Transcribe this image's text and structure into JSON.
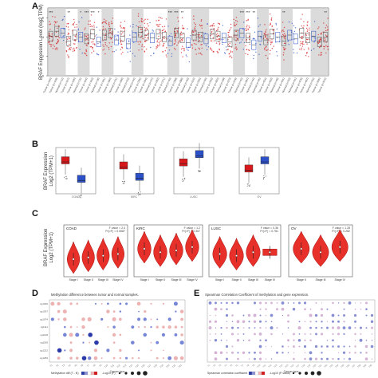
{
  "labels": {
    "a": "A",
    "b": "B",
    "c": "C",
    "d": "D",
    "e": "E"
  },
  "panel_a": {
    "ylabel": "BRAF Expression Level (log2 TPM)",
    "significance": [
      "***",
      "",
      "",
      "**",
      "",
      "*",
      "***",
      "***",
      "*",
      "",
      "",
      "",
      "",
      "",
      "",
      "",
      "",
      "",
      "",
      "",
      "***",
      "***",
      "**",
      "",
      "",
      "",
      "",
      "",
      "",
      "",
      "",
      "",
      "***",
      "***",
      "**",
      "",
      "",
      "",
      "",
      "**",
      "",
      "",
      "",
      "",
      "",
      "",
      "**"
    ]
  },
  "panel_b": {
    "ylabel": "BRAF Expression\nLog2 (TPM+1)"
  },
  "panel_c": {
    "ylabel": "BRAF Expression\nLog2 (TPM+1)",
    "subplots": [
      {
        "name": "COAD",
        "stat1": "F value = 2.4",
        "stat2": "Pr(>F) = 0.0687",
        "stages": [
          "Stage I",
          "Stage II",
          "Stage III",
          "Stage IV"
        ]
      },
      {
        "name": "KIRC",
        "stat1": "F value = 1.2",
        "stat2": "Pr(>F) = 0.307",
        "stages": [
          "Stage I",
          "Stage II",
          "Stage III",
          "Stage IV"
        ]
      },
      {
        "name": "LUSC",
        "stat1": "F value = 0.36",
        "stat2": "Pr(>F) = 0.781",
        "stages": [
          "Stage I",
          "Stage II",
          "Stage III",
          "Stage IV"
        ]
      },
      {
        "name": "OV",
        "stat1": "F value = 1.28",
        "stat2": "Pr(>F) = 0.282",
        "stages": [
          "Stage II",
          "Stage III",
          "Stage IV"
        ]
      }
    ]
  },
  "panel_d": {
    "title": "Methylation difference between tumor and normal samples.",
    "xlabel": "Cancer type",
    "ylabel": "Probe",
    "legend1": "Methylation diff (T - N)",
    "legend2": "-Log10 (P)"
  },
  "panel_e": {
    "title": "Spearman Correlation Coefficient of methylation and gene expression.",
    "xlabel": "Cancer type",
    "ylabel": "Probe",
    "legend1": "Spearman correlation coefficient",
    "legend2": "-Log10 (P-value)"
  },
  "colors": {
    "tumor": "#d7191c",
    "normal": "#2b50c8",
    "gray_band": "#cfcfcf",
    "violin": "#e8302a"
  },
  "chart_data": [
    {
      "type": "scatter",
      "panel": "A",
      "ylabel": "BRAF Expression Level (log2 TPM)",
      "groups_count": 47,
      "median_levels": [
        4.1,
        4.6,
        4.4,
        3.6,
        4.2,
        4.0,
        3.8,
        4.3,
        3.5,
        4.2,
        4.4,
        3.7,
        4.1,
        3.3,
        4.0,
        4.5,
        4.2,
        3.9,
        4.3,
        4.0,
        3.6,
        4.4,
        3.9,
        3.4,
        4.2,
        4.0,
        3.8,
        4.3,
        4.1,
        3.9,
        3.5,
        4.2,
        4.4,
        3.9,
        3.2,
        4.1,
        3.7,
        4.3,
        4.0,
        3.6,
        4.2,
        3.8,
        4.4,
        3.9,
        4.1,
        3.5,
        4.0
      ]
    },
    {
      "type": "bar",
      "panel": "B",
      "series": [
        {
          "name": "Tumor",
          "values": [
            3.1,
            2.6,
            2.9,
            2.3
          ]
        },
        {
          "name": "Normal",
          "values": [
            1.3,
            1.5,
            3.7,
            3.1
          ]
        }
      ]
    },
    {
      "type": "area",
      "panel": "C",
      "categories": [
        "COAD",
        "KIRC",
        "LUSC",
        "OV"
      ],
      "stage_medians": [
        [
          3.2,
          3.3,
          3.4,
          3.5
        ],
        [
          3.8,
          3.6,
          3.7,
          3.9
        ],
        [
          3.5,
          3.4,
          3.6,
          3.6
        ],
        [
          3.8,
          3.6,
          3.9
        ]
      ]
    },
    {
      "type": "heatmap",
      "panel": "D",
      "rows": 8,
      "cols": 22
    },
    {
      "type": "heatmap",
      "panel": "E",
      "rows": 10,
      "cols": 30
    }
  ]
}
